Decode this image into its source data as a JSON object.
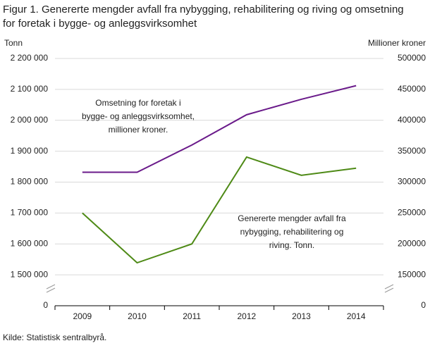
{
  "chart_data": {
    "type": "line",
    "title": [
      "Figur 1. Genererte mengder avfall fra nybygging, rehabilitering og riving og omsetning",
      "for foretak i bygge- og anleggsvirksomhet"
    ],
    "y_label": "Tonn",
    "y2_label": "Millioner  kroner",
    "categories": [
      "2009",
      "2010",
      "2011",
      "2012",
      "2013",
      "2014"
    ],
    "series": [
      {
        "name": "Genererte mengder avfall fra nybygging, rehabilitering og riving. Tonn.",
        "color": "#4e8a16",
        "values": [
          1700000,
          1539000,
          1600000,
          1881000,
          1822000,
          1845000
        ]
      },
      {
        "name": "Omsetning for foretak i bygge- og anleggsvirksomhet, millioner kroner.",
        "color": "#6a1a8a",
        "axis": "y2",
        "values": [
          316000,
          316000,
          360000,
          409000,
          434000,
          456000
        ]
      }
    ],
    "annotations": [
      [
        "Omsetning  for foretak i",
        "bygge- og anleggsvirksomhet,",
        "millioner  kroner."
      ],
      [
        "Genererte  mengder  avfall fra",
        "nybygging, rehabilitering  og",
        "riving. Tonn."
      ]
    ],
    "ylim": [
      0,
      2200000
    ],
    "yticks": [
      {
        "value": 0,
        "label": "0"
      },
      {
        "value": 1500000,
        "label": "1 500 000"
      },
      {
        "value": 1600000,
        "label": "1 600 000"
      },
      {
        "value": 1700000,
        "label": "1 700 000"
      },
      {
        "value": 1800000,
        "label": "1 800 000"
      },
      {
        "value": 1900000,
        "label": "1 900 000"
      },
      {
        "value": 2000000,
        "label": "2 000 000"
      },
      {
        "value": 2100000,
        "label": "2 100 000"
      },
      {
        "value": 2200000,
        "label": "2 200 000"
      }
    ],
    "y2lim": [
      0,
      500000
    ],
    "y2ticks": [
      0,
      150000,
      200000,
      250000,
      300000,
      350000,
      400000,
      450000,
      500000
    ],
    "axis_break": true,
    "grid": true,
    "source": "Kilde: Statistisk sentralbyrå."
  }
}
